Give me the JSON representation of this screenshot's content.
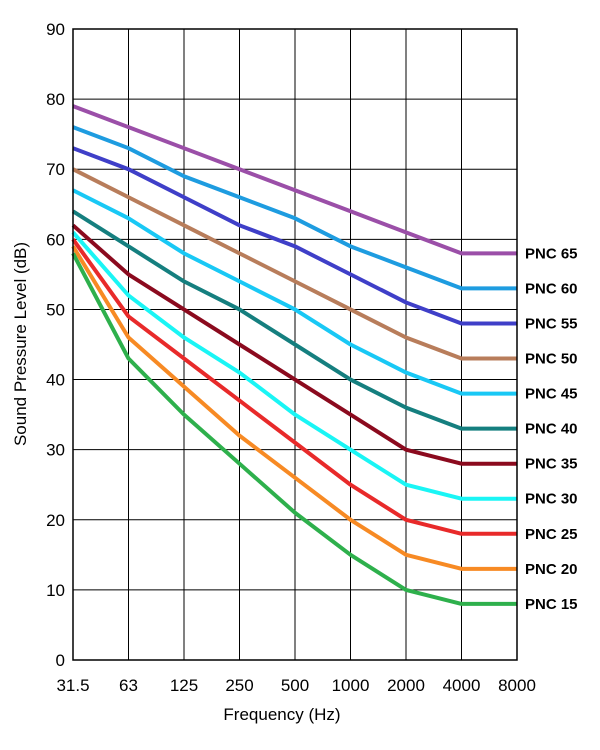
{
  "chart_data": {
    "type": "line",
    "title": "",
    "xlabel": "Frequency (Hz)",
    "ylabel": "Sound Pressure Level (dB)",
    "categories": [
      "31.5",
      "63",
      "125",
      "250",
      "500",
      "1000",
      "2000",
      "4000",
      "8000"
    ],
    "ylim": [
      0,
      90
    ],
    "yticks": [
      0,
      10,
      20,
      30,
      40,
      50,
      60,
      70,
      80,
      90
    ],
    "grid": true,
    "legend": "direct labels at right end of each series",
    "series": [
      {
        "name": "PNC 65",
        "color": "#9b4fa8",
        "values": [
          79,
          76,
          73,
          70,
          67,
          64,
          61,
          58,
          58
        ]
      },
      {
        "name": "PNC 60",
        "color": "#1e9ce0",
        "values": [
          76,
          73,
          69,
          66,
          63,
          59,
          56,
          53,
          53
        ]
      },
      {
        "name": "PNC 55",
        "color": "#3f3fc8",
        "values": [
          73,
          70,
          66,
          62,
          59,
          55,
          51,
          48,
          48
        ]
      },
      {
        "name": "PNC 50",
        "color": "#b87d5b",
        "values": [
          70,
          66,
          62,
          58,
          54,
          50,
          46,
          43,
          43
        ]
      },
      {
        "name": "PNC 45",
        "color": "#19c8f5",
        "values": [
          67,
          63,
          58,
          54,
          50,
          45,
          41,
          38,
          38
        ]
      },
      {
        "name": "PNC 40",
        "color": "#157f7f",
        "values": [
          64,
          59,
          54,
          50,
          45,
          40,
          36,
          33,
          33
        ]
      },
      {
        "name": "PNC 35",
        "color": "#8b0a1e",
        "values": [
          62,
          55,
          50,
          45,
          40,
          35,
          30,
          28,
          28
        ]
      },
      {
        "name": "PNC 30",
        "color": "#1af5f5",
        "values": [
          61,
          52,
          46,
          41,
          35,
          30,
          25,
          23,
          23
        ]
      },
      {
        "name": "PNC 25",
        "color": "#e82a2a",
        "values": [
          60,
          49,
          43,
          37,
          31,
          25,
          20,
          18,
          18
        ]
      },
      {
        "name": "PNC 20",
        "color": "#f78a24",
        "values": [
          59,
          46,
          39,
          32,
          26,
          20,
          15,
          13,
          13
        ]
      },
      {
        "name": "PNC 15",
        "color": "#2eb04c",
        "values": [
          58,
          43,
          35,
          28,
          21,
          15,
          10,
          8,
          8
        ]
      }
    ]
  }
}
